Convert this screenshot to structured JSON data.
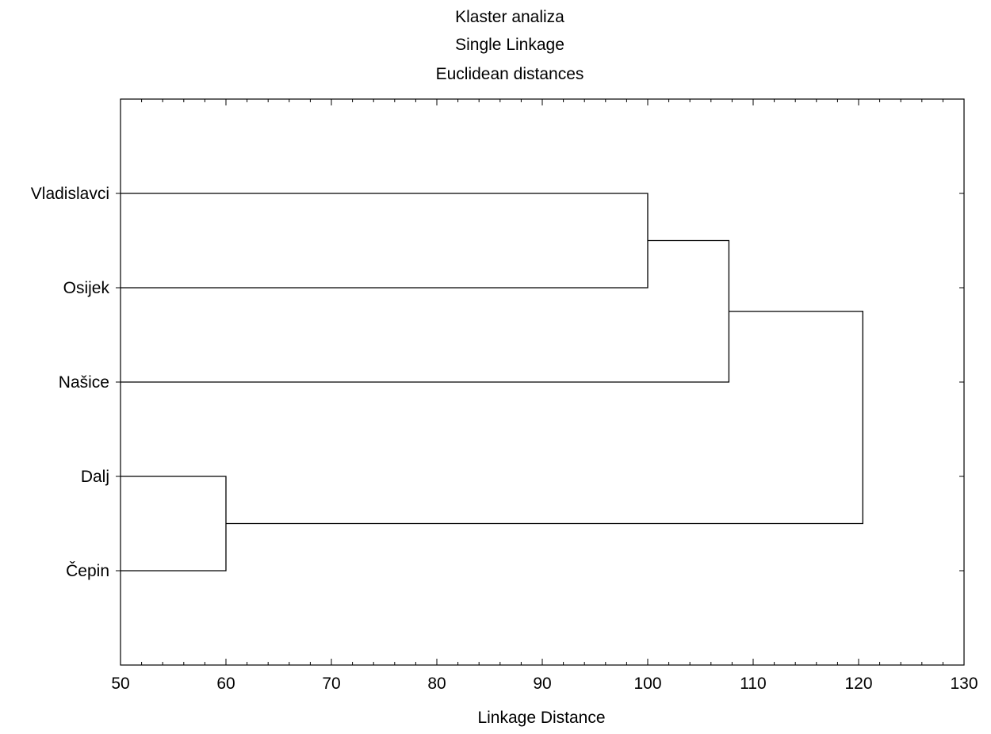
{
  "chart_data": {
    "type": "dendrogram",
    "title": [
      "Klaster analiza",
      "Single Linkage",
      "Euclidean distances"
    ],
    "xlabel": "Linkage Distance",
    "xlim": [
      50,
      130
    ],
    "xticks": [
      50,
      60,
      70,
      80,
      90,
      100,
      110,
      120,
      130
    ],
    "leaves": [
      "Vladislavci",
      "Osijek",
      "Našice",
      "Dalj",
      "Čepin"
    ],
    "merges": [
      {
        "id": "c1",
        "left": "Vladislavci",
        "right": "Osijek",
        "distance": 100
      },
      {
        "id": "c2",
        "left": "Dalj",
        "right": "Čepin",
        "distance": 60
      },
      {
        "id": "c3",
        "left": "c1",
        "right": "Našice",
        "distance": 107.7
      },
      {
        "id": "c4",
        "left": "c3",
        "right": "c2",
        "distance": 120.4
      }
    ],
    "grid": false
  }
}
